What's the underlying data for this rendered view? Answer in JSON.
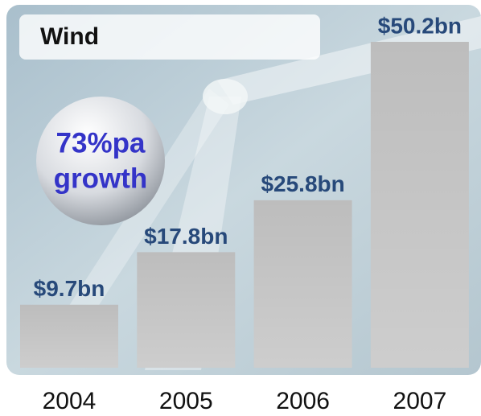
{
  "chart_data": {
    "type": "bar",
    "title": "Wind",
    "annotation": [
      "73%pa",
      "growth"
    ],
    "categories": [
      "2004",
      "2005",
      "2006",
      "2007"
    ],
    "values": [
      9.7,
      17.8,
      25.8,
      50.2
    ],
    "value_labels": [
      "$9.7bn",
      "$17.8bn",
      "$25.8bn",
      "$50.2bn"
    ],
    "color": "#bdbdbd",
    "label_color": "#27497a",
    "annotation_color": "#3434c8"
  }
}
